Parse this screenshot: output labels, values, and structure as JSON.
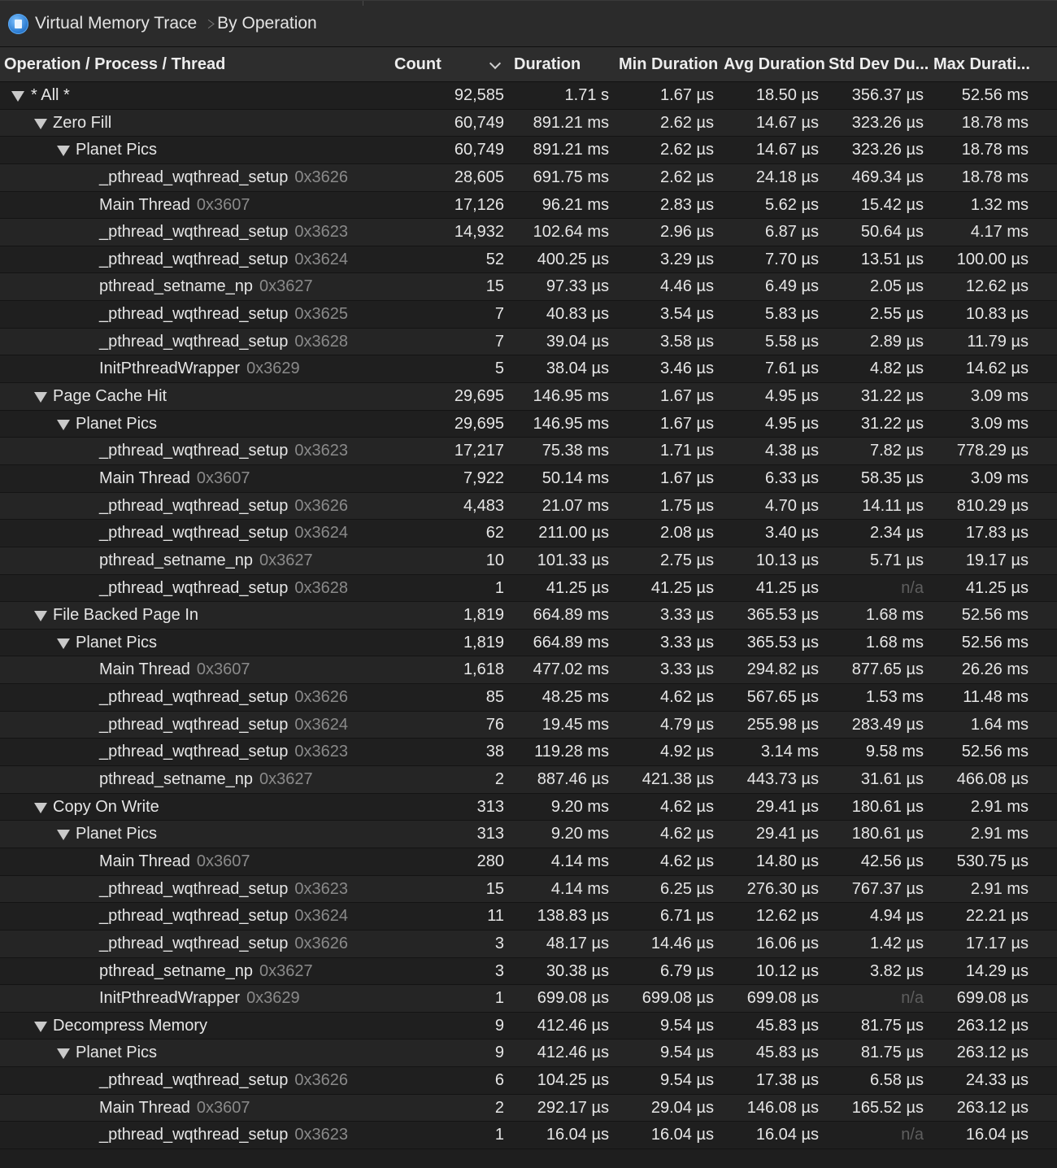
{
  "breadcrumb": {
    "app": "Virtual Memory Trace",
    "view": "By Operation"
  },
  "columns": {
    "name": "Operation / Process / Thread",
    "count": "Count",
    "duration": "Duration",
    "min": "Min Duration",
    "avg": "Avg Duration",
    "std": "Std Dev Du...",
    "max": "Max Durati..."
  },
  "rows": [
    {
      "level": 0,
      "name": "* All *",
      "count": "92,585",
      "duration": "1.71 s",
      "min": "1.67 µs",
      "avg": "18.50 µs",
      "std": "356.37 µs",
      "max": "52.56 ms"
    },
    {
      "level": 1,
      "name": "Zero Fill",
      "count": "60,749",
      "duration": "891.21 ms",
      "min": "2.62 µs",
      "avg": "14.67 µs",
      "std": "323.26 µs",
      "max": "18.78 ms"
    },
    {
      "level": 2,
      "name": "Planet Pics",
      "count": "60,749",
      "duration": "891.21 ms",
      "min": "2.62 µs",
      "avg": "14.67 µs",
      "std": "323.26 µs",
      "max": "18.78 ms"
    },
    {
      "level": 3,
      "name": "_pthread_wqthread_setup",
      "tid": "0x3626",
      "count": "28,605",
      "duration": "691.75 ms",
      "min": "2.62 µs",
      "avg": "24.18 µs",
      "std": "469.34 µs",
      "max": "18.78 ms"
    },
    {
      "level": 3,
      "name": "Main Thread",
      "tid": "0x3607",
      "count": "17,126",
      "duration": "96.21 ms",
      "min": "2.83 µs",
      "avg": "5.62 µs",
      "std": "15.42 µs",
      "max": "1.32 ms"
    },
    {
      "level": 3,
      "name": "_pthread_wqthread_setup",
      "tid": "0x3623",
      "count": "14,932",
      "duration": "102.64 ms",
      "min": "2.96 µs",
      "avg": "6.87 µs",
      "std": "50.64 µs",
      "max": "4.17 ms"
    },
    {
      "level": 3,
      "name": "_pthread_wqthread_setup",
      "tid": "0x3624",
      "count": "52",
      "duration": "400.25 µs",
      "min": "3.29 µs",
      "avg": "7.70 µs",
      "std": "13.51 µs",
      "max": "100.00 µs"
    },
    {
      "level": 3,
      "name": "pthread_setname_np",
      "tid": "0x3627",
      "count": "15",
      "duration": "97.33 µs",
      "min": "4.46 µs",
      "avg": "6.49 µs",
      "std": "2.05 µs",
      "max": "12.62 µs"
    },
    {
      "level": 3,
      "name": "_pthread_wqthread_setup",
      "tid": "0x3625",
      "count": "7",
      "duration": "40.83 µs",
      "min": "3.54 µs",
      "avg": "5.83 µs",
      "std": "2.55 µs",
      "max": "10.83 µs"
    },
    {
      "level": 3,
      "name": "_pthread_wqthread_setup",
      "tid": "0x3628",
      "count": "7",
      "duration": "39.04 µs",
      "min": "3.58 µs",
      "avg": "5.58 µs",
      "std": "2.89 µs",
      "max": "11.79 µs"
    },
    {
      "level": 3,
      "name": "InitPthreadWrapper",
      "tid": "0x3629",
      "count": "5",
      "duration": "38.04 µs",
      "min": "3.46 µs",
      "avg": "7.61 µs",
      "std": "4.82 µs",
      "max": "14.62 µs"
    },
    {
      "level": 1,
      "name": "Page Cache Hit",
      "count": "29,695",
      "duration": "146.95 ms",
      "min": "1.67 µs",
      "avg": "4.95 µs",
      "std": "31.22 µs",
      "max": "3.09 ms"
    },
    {
      "level": 2,
      "name": "Planet Pics",
      "count": "29,695",
      "duration": "146.95 ms",
      "min": "1.67 µs",
      "avg": "4.95 µs",
      "std": "31.22 µs",
      "max": "3.09 ms"
    },
    {
      "level": 3,
      "name": "_pthread_wqthread_setup",
      "tid": "0x3623",
      "count": "17,217",
      "duration": "75.38 ms",
      "min": "1.71 µs",
      "avg": "4.38 µs",
      "std": "7.82 µs",
      "max": "778.29 µs"
    },
    {
      "level": 3,
      "name": "Main Thread",
      "tid": "0x3607",
      "count": "7,922",
      "duration": "50.14 ms",
      "min": "1.67 µs",
      "avg": "6.33 µs",
      "std": "58.35 µs",
      "max": "3.09 ms"
    },
    {
      "level": 3,
      "name": "_pthread_wqthread_setup",
      "tid": "0x3626",
      "count": "4,483",
      "duration": "21.07 ms",
      "min": "1.75 µs",
      "avg": "4.70 µs",
      "std": "14.11 µs",
      "max": "810.29 µs"
    },
    {
      "level": 3,
      "name": "_pthread_wqthread_setup",
      "tid": "0x3624",
      "count": "62",
      "duration": "211.00 µs",
      "min": "2.08 µs",
      "avg": "3.40 µs",
      "std": "2.34 µs",
      "max": "17.83 µs"
    },
    {
      "level": 3,
      "name": "pthread_setname_np",
      "tid": "0x3627",
      "count": "10",
      "duration": "101.33 µs",
      "min": "2.75 µs",
      "avg": "10.13 µs",
      "std": "5.71 µs",
      "max": "19.17 µs"
    },
    {
      "level": 3,
      "name": "_pthread_wqthread_setup",
      "tid": "0x3628",
      "count": "1",
      "duration": "41.25 µs",
      "min": "41.25 µs",
      "avg": "41.25 µs",
      "std": "n/a",
      "max": "41.25 µs"
    },
    {
      "level": 1,
      "name": "File Backed Page In",
      "count": "1,819",
      "duration": "664.89 ms",
      "min": "3.33 µs",
      "avg": "365.53 µs",
      "std": "1.68 ms",
      "max": "52.56 ms"
    },
    {
      "level": 2,
      "name": "Planet Pics",
      "count": "1,819",
      "duration": "664.89 ms",
      "min": "3.33 µs",
      "avg": "365.53 µs",
      "std": "1.68 ms",
      "max": "52.56 ms"
    },
    {
      "level": 3,
      "name": "Main Thread",
      "tid": "0x3607",
      "count": "1,618",
      "duration": "477.02 ms",
      "min": "3.33 µs",
      "avg": "294.82 µs",
      "std": "877.65 µs",
      "max": "26.26 ms"
    },
    {
      "level": 3,
      "name": "_pthread_wqthread_setup",
      "tid": "0x3626",
      "count": "85",
      "duration": "48.25 ms",
      "min": "4.62 µs",
      "avg": "567.65 µs",
      "std": "1.53 ms",
      "max": "11.48 ms"
    },
    {
      "level": 3,
      "name": "_pthread_wqthread_setup",
      "tid": "0x3624",
      "count": "76",
      "duration": "19.45 ms",
      "min": "4.79 µs",
      "avg": "255.98 µs",
      "std": "283.49 µs",
      "max": "1.64 ms"
    },
    {
      "level": 3,
      "name": "_pthread_wqthread_setup",
      "tid": "0x3623",
      "count": "38",
      "duration": "119.28 ms",
      "min": "4.92 µs",
      "avg": "3.14 ms",
      "std": "9.58 ms",
      "max": "52.56 ms"
    },
    {
      "level": 3,
      "name": "pthread_setname_np",
      "tid": "0x3627",
      "count": "2",
      "duration": "887.46 µs",
      "min": "421.38 µs",
      "avg": "443.73 µs",
      "std": "31.61 µs",
      "max": "466.08 µs"
    },
    {
      "level": 1,
      "name": "Copy On Write",
      "count": "313",
      "duration": "9.20 ms",
      "min": "4.62 µs",
      "avg": "29.41 µs",
      "std": "180.61 µs",
      "max": "2.91 ms"
    },
    {
      "level": 2,
      "name": "Planet Pics",
      "count": "313",
      "duration": "9.20 ms",
      "min": "4.62 µs",
      "avg": "29.41 µs",
      "std": "180.61 µs",
      "max": "2.91 ms"
    },
    {
      "level": 3,
      "name": "Main Thread",
      "tid": "0x3607",
      "count": "280",
      "duration": "4.14 ms",
      "min": "4.62 µs",
      "avg": "14.80 µs",
      "std": "42.56 µs",
      "max": "530.75 µs"
    },
    {
      "level": 3,
      "name": "_pthread_wqthread_setup",
      "tid": "0x3623",
      "count": "15",
      "duration": "4.14 ms",
      "min": "6.25 µs",
      "avg": "276.30 µs",
      "std": "767.37 µs",
      "max": "2.91 ms"
    },
    {
      "level": 3,
      "name": "_pthread_wqthread_setup",
      "tid": "0x3624",
      "count": "11",
      "duration": "138.83 µs",
      "min": "6.71 µs",
      "avg": "12.62 µs",
      "std": "4.94 µs",
      "max": "22.21 µs"
    },
    {
      "level": 3,
      "name": "_pthread_wqthread_setup",
      "tid": "0x3626",
      "count": "3",
      "duration": "48.17 µs",
      "min": "14.46 µs",
      "avg": "16.06 µs",
      "std": "1.42 µs",
      "max": "17.17 µs"
    },
    {
      "level": 3,
      "name": "pthread_setname_np",
      "tid": "0x3627",
      "count": "3",
      "duration": "30.38 µs",
      "min": "6.79 µs",
      "avg": "10.12 µs",
      "std": "3.82 µs",
      "max": "14.29 µs"
    },
    {
      "level": 3,
      "name": "InitPthreadWrapper",
      "tid": "0x3629",
      "count": "1",
      "duration": "699.08 µs",
      "min": "699.08 µs",
      "avg": "699.08 µs",
      "std": "n/a",
      "max": "699.08 µs"
    },
    {
      "level": 1,
      "name": "Decompress Memory",
      "count": "9",
      "duration": "412.46 µs",
      "min": "9.54 µs",
      "avg": "45.83 µs",
      "std": "81.75 µs",
      "max": "263.12 µs"
    },
    {
      "level": 2,
      "name": "Planet Pics",
      "count": "9",
      "duration": "412.46 µs",
      "min": "9.54 µs",
      "avg": "45.83 µs",
      "std": "81.75 µs",
      "max": "263.12 µs"
    },
    {
      "level": 3,
      "name": "_pthread_wqthread_setup",
      "tid": "0x3626",
      "count": "6",
      "duration": "104.25 µs",
      "min": "9.54 µs",
      "avg": "17.38 µs",
      "std": "6.58 µs",
      "max": "24.33 µs"
    },
    {
      "level": 3,
      "name": "Main Thread",
      "tid": "0x3607",
      "count": "2",
      "duration": "292.17 µs",
      "min": "29.04 µs",
      "avg": "146.08 µs",
      "std": "165.52 µs",
      "max": "263.12 µs"
    },
    {
      "level": 3,
      "name": "_pthread_wqthread_setup",
      "tid": "0x3623",
      "count": "1",
      "duration": "16.04 µs",
      "min": "16.04 µs",
      "avg": "16.04 µs",
      "std": "n/a",
      "max": "16.04 µs"
    }
  ]
}
